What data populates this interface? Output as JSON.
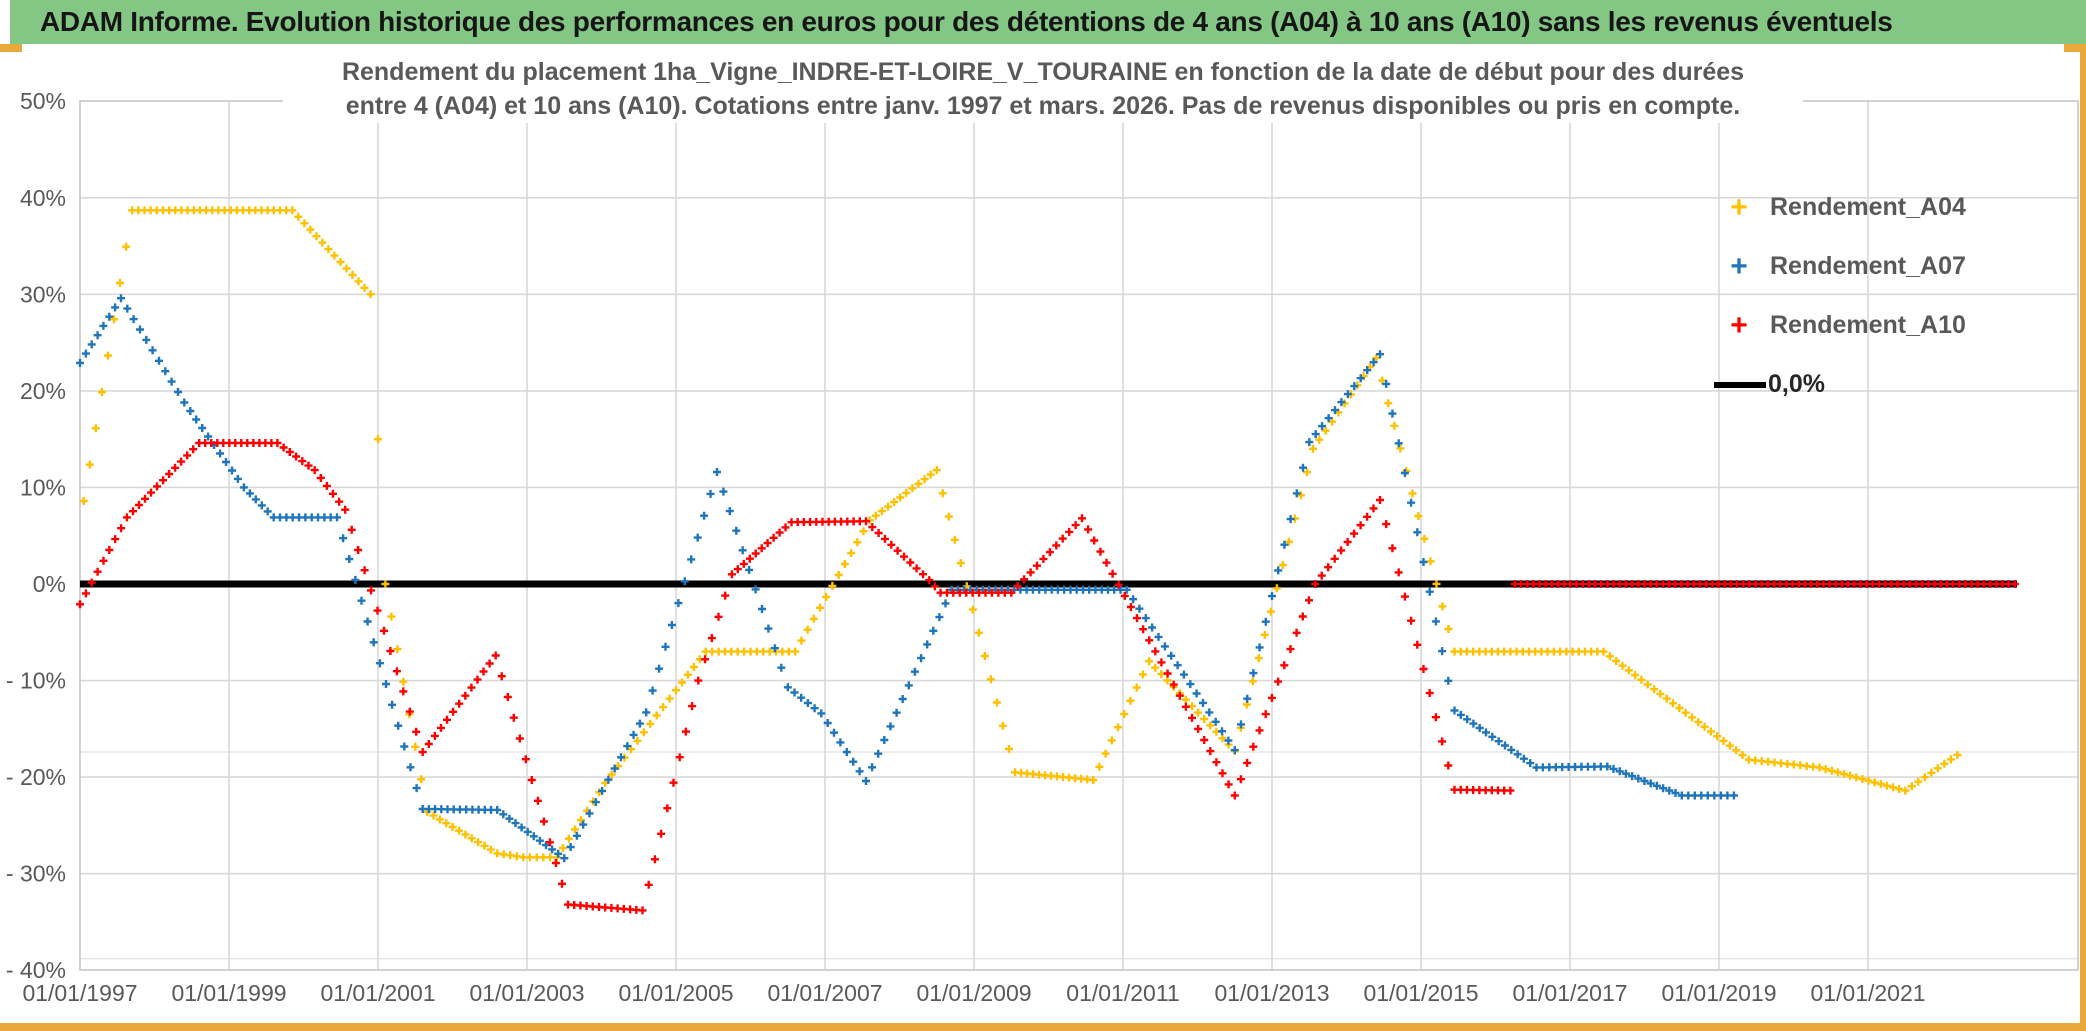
{
  "banner": {
    "title": "ADAM Informe. Evolution historique des performances en euros pour des détentions de 4 ans (A04) à 10 ans (A10) sans les revenus éventuels"
  },
  "colors": {
    "banner_green": "#84C784",
    "accent_gold": "#E8A83C",
    "series_a04": "#FFC000",
    "series_a07": "#1F75BC",
    "series_a10": "#FF0000",
    "zero_line": "#000000",
    "gridline": "#D9D9D9",
    "axis_text": "#595959"
  },
  "chart_data": {
    "type": "scatter",
    "title_lines": [
      "Rendement du placement 1ha_Vigne_INDRE-ET-LOIRE_V_TOURAINE en fonction de la date de début pour des durées",
      "entre 4 (A04) et 10 ans (A10). Cotations entre janv. 1997 et mars. 2026. Pas de revenus disponibles ou pris en compte."
    ],
    "x_axis": {
      "ticks": [
        {
          "year": 1997,
          "label": "01/01/1997"
        },
        {
          "year": 1999,
          "label": "01/01/1999"
        },
        {
          "year": 2001,
          "label": "01/01/2001"
        },
        {
          "year": 2003,
          "label": "01/01/2003"
        },
        {
          "year": 2005,
          "label": "01/01/2005"
        },
        {
          "year": 2007,
          "label": "01/01/2007"
        },
        {
          "year": 2009,
          "label": "01/01/2009"
        },
        {
          "year": 2011,
          "label": "01/01/2011"
        },
        {
          "year": 2013,
          "label": "01/01/2013"
        },
        {
          "year": 2015,
          "label": "01/01/2015"
        },
        {
          "year": 2017,
          "label": "01/01/2017"
        },
        {
          "year": 2019,
          "label": "01/01/2019"
        },
        {
          "year": 2021,
          "label": "01/01/2021"
        }
      ],
      "range": [
        1997.0,
        2023.8
      ]
    },
    "y_axis": {
      "ticks": [
        {
          "value": 50,
          "label": "50%"
        },
        {
          "value": 40,
          "label": "40%"
        },
        {
          "value": 30,
          "label": "30%"
        },
        {
          "value": 20,
          "label": "20%"
        },
        {
          "value": 10,
          "label": "10%"
        },
        {
          "value": 0,
          "label": "0%"
        },
        {
          "value": -10,
          "label": "- 10%"
        },
        {
          "value": -20,
          "label": "- 20%"
        },
        {
          "value": -30,
          "label": "- 30%"
        },
        {
          "value": -40,
          "label": "- 40%"
        }
      ],
      "extra_gridlines": [
        -17.4,
        -38.8
      ],
      "range": [
        -40,
        50
      ]
    },
    "zero_line": {
      "label": "0,0%",
      "color": "#000000",
      "y": 0,
      "x_start": 1997.0,
      "x_end": 2023.0
    },
    "series": [
      {
        "name": "Rendement_A04",
        "color": "#FFC000",
        "marker": "+",
        "parts": [
          [
            [
              1997.05,
              8.6
            ],
            [
              1997.7,
              38.7
            ],
            [
              1999.85,
              38.7
            ],
            [
              2000.9,
              30.0
            ],
            [
              2001.1,
              0.0
            ],
            [
              2001.66,
              -23.6
            ],
            [
              2002.6,
              -27.9
            ],
            [
              2002.95,
              -28.3
            ],
            [
              2003.4,
              -28.3
            ],
            [
              2004.05,
              -20.6
            ],
            [
              2005.0,
              -11.0
            ],
            [
              2005.4,
              -7.0
            ],
            [
              2006.6,
              -7.0
            ],
            [
              2007.6,
              6.6
            ],
            [
              2008.5,
              11.8
            ],
            [
              2009.55,
              -19.5
            ],
            [
              2010.6,
              -20.3
            ],
            [
              2011.35,
              -8.0
            ],
            [
              2012.5,
              -17.3
            ],
            [
              2013.55,
              14.0
            ],
            [
              2014.4,
              23.4
            ],
            [
              2015.45,
              -7.0
            ],
            [
              2017.45,
              -7.0
            ],
            [
              2019.4,
              -18.2
            ],
            [
              2020.35,
              -19.0
            ],
            [
              2021.5,
              -21.4
            ],
            [
              2022.2,
              -17.7
            ]
          ]
        ]
      },
      {
        "name": "Rendement_A07",
        "color": "#1F75BC",
        "marker": "+",
        "parts": [
          [
            [
              1997.0,
              22.9
            ],
            [
              1997.55,
              29.6
            ],
            [
              1998.4,
              18.8
            ],
            [
              1999.2,
              10.0
            ],
            [
              1999.6,
              6.9
            ],
            [
              2000.45,
              6.9
            ],
            [
              2001.6,
              -23.3
            ],
            [
              2002.6,
              -23.4
            ],
            [
              2003.5,
              -28.4
            ],
            [
              2004.6,
              -13.3
            ],
            [
              2005.55,
              11.6
            ],
            [
              2006.5,
              -10.7
            ],
            [
              2006.95,
              -13.4
            ],
            [
              2007.55,
              -20.4
            ],
            [
              2008.7,
              -0.6
            ],
            [
              2011.05,
              -0.6
            ],
            [
              2012.5,
              -17.2
            ],
            [
              2013.5,
              14.7
            ],
            [
              2014.45,
              23.8
            ],
            [
              2015.45,
              -13.1
            ],
            [
              2016.55,
              -19.0
            ],
            [
              2017.5,
              -18.9
            ],
            [
              2018.5,
              -21.9
            ],
            [
              2019.2,
              -21.9
            ]
          ]
        ]
      },
      {
        "name": "Rendement_A10",
        "color": "#FF0000",
        "marker": "+",
        "parts": [
          [
            [
              1997.0,
              -2.1
            ],
            [
              1997.63,
              6.9
            ],
            [
              1998.6,
              14.6
            ],
            [
              1999.65,
              14.6
            ],
            [
              2000.15,
              11.8
            ],
            [
              2000.56,
              7.7
            ],
            [
              2001.6,
              -17.4
            ],
            [
              2002.58,
              -7.4
            ],
            [
              2003.55,
              -33.2
            ],
            [
              2004.55,
              -33.8
            ],
            [
              2005.3,
              -10.0
            ],
            [
              2005.75,
              1.0
            ],
            [
              2006.55,
              6.4
            ],
            [
              2007.55,
              6.5
            ],
            [
              2008.4,
              0.4
            ],
            [
              2008.55,
              -0.9
            ],
            [
              2009.5,
              -0.9
            ],
            [
              2010.45,
              6.8
            ],
            [
              2012.5,
              -21.9
            ],
            [
              2013.58,
              0.0
            ],
            [
              2014.45,
              8.7
            ],
            [
              2015.45,
              -21.3
            ],
            [
              2016.2,
              -21.4
            ]
          ],
          [
            [
              2016.26,
              0.0
            ],
            [
              2022.97,
              0.0
            ]
          ]
        ]
      }
    ],
    "legend": [
      {
        "label": "Rendement_A04",
        "marker": "+",
        "color": "#FFC000"
      },
      {
        "label": "Rendement_A07",
        "marker": "+",
        "color": "#1F75BC"
      },
      {
        "label": "Rendement_A10",
        "marker": "+",
        "color": "#FF0000"
      },
      {
        "label": "0,0%",
        "marker": "line",
        "color": "#000000"
      }
    ],
    "grid": true,
    "legend_position": "inside-right"
  }
}
